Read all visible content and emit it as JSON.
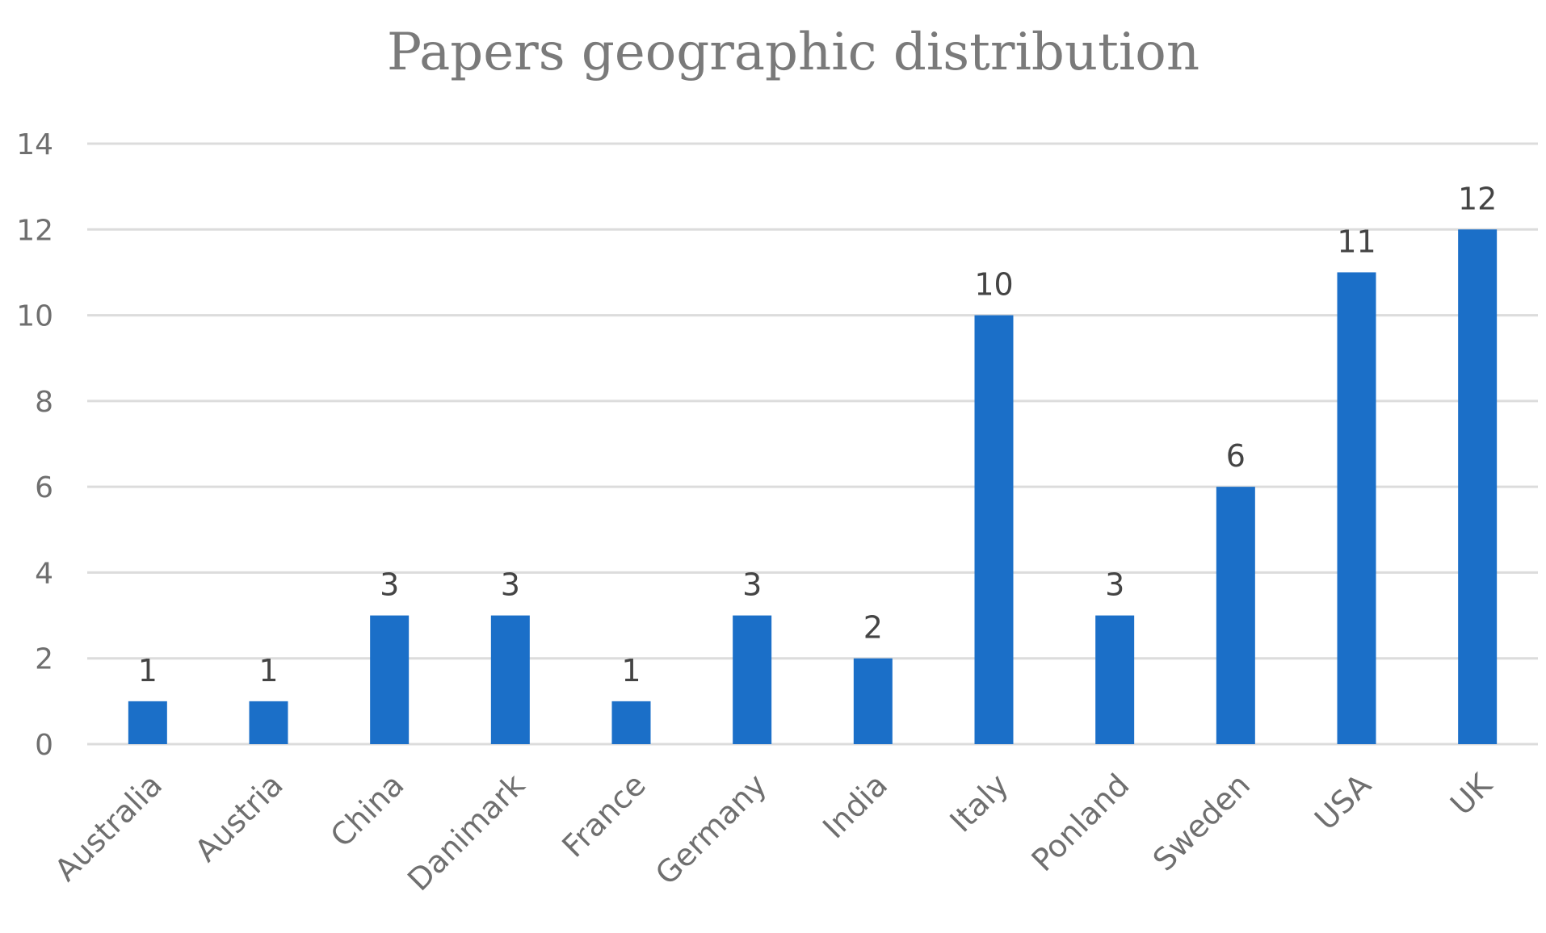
{
  "chart_data": {
    "type": "bar",
    "title": "Papers geographic distribution",
    "xlabel": "",
    "ylabel": "",
    "categories": [
      "Australia",
      "Austria",
      "China",
      "Danimark",
      "France",
      "Germany",
      "India",
      "Italy",
      "Ponland",
      "Sweden",
      "USA",
      "UK"
    ],
    "values": [
      1,
      1,
      3,
      3,
      1,
      3,
      2,
      10,
      3,
      6,
      11,
      12
    ],
    "ylim": [
      0,
      14
    ],
    "yticks": [
      0,
      2,
      4,
      6,
      8,
      10,
      12,
      14
    ],
    "grid": true,
    "data_labels": true,
    "bar_color": "#1b6fc8",
    "legend": "none"
  }
}
